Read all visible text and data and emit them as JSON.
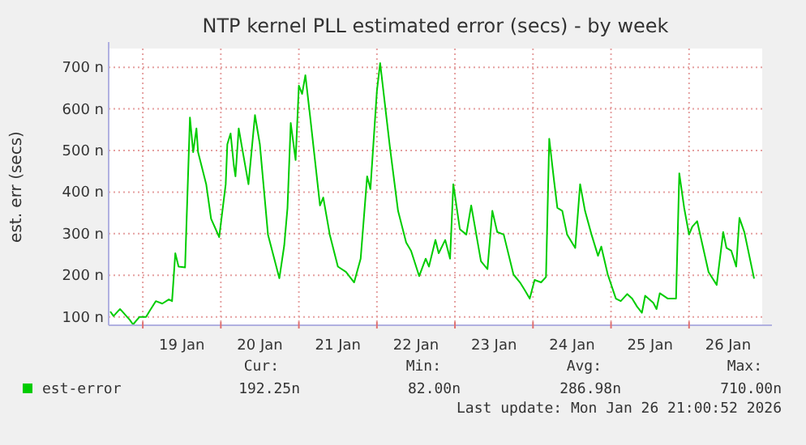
{
  "chart_data": {
    "type": "line",
    "title": "NTP kernel PLL estimated error (secs) - by week",
    "ylabel": "est. err (secs)",
    "x": [
      "2026-01-18T14:00",
      "2026-01-18T15:00",
      "2026-01-18T17:00",
      "2026-01-18T20:00",
      "2026-01-18T21:00",
      "2026-01-18T23:00",
      "2026-01-19T01:00",
      "2026-01-19T02:00",
      "2026-01-19T04:00",
      "2026-01-19T06:00",
      "2026-01-19T08:00",
      "2026-01-19T09:00",
      "2026-01-19T10:00",
      "2026-01-19T11:00",
      "2026-01-19T13:00",
      "2026-01-19T14:30",
      "2026-01-19T15:30",
      "2026-01-19T16:30",
      "2026-01-19T17:00",
      "2026-01-19T19:30",
      "2026-01-19T21:00",
      "2026-01-19T23:30",
      "2026-01-20T01:30",
      "2026-01-20T02:00",
      "2026-01-20T03:00",
      "2026-01-20T04:00",
      "2026-01-20T04:30",
      "2026-01-20T05:30",
      "2026-01-20T06:30",
      "2026-01-20T08:30",
      "2026-01-20T10:30",
      "2026-01-20T12:00",
      "2026-01-20T14:30",
      "2026-01-20T18:00",
      "2026-01-20T19:30",
      "2026-01-20T20:30",
      "2026-01-20T21:30",
      "2026-01-20T23:00",
      "2026-01-21T00:00",
      "2026-01-21T01:00",
      "2026-01-21T02:00",
      "2026-01-21T03:30",
      "2026-01-21T06:30",
      "2026-01-21T07:30",
      "2026-01-21T09:30",
      "2026-01-21T12:00",
      "2026-01-21T14:30",
      "2026-01-21T17:00",
      "2026-01-21T19:00",
      "2026-01-21T21:00",
      "2026-01-21T22:00",
      "2026-01-22T00:00",
      "2026-01-22T01:00",
      "2026-01-22T04:00",
      "2026-01-22T06:30",
      "2026-01-22T09:00",
      "2026-01-22T10:30",
      "2026-01-22T13:00",
      "2026-01-22T15:00",
      "2026-01-22T16:00",
      "2026-01-22T18:00",
      "2026-01-22T19:00",
      "2026-01-22T21:00",
      "2026-01-22T22:30",
      "2026-01-22T23:30",
      "2026-01-23T01:30",
      "2026-01-23T03:30",
      "2026-01-23T05:00",
      "2026-01-23T08:00",
      "2026-01-23T10:00",
      "2026-01-23T11:30",
      "2026-01-23T13:00",
      "2026-01-23T15:00",
      "2026-01-23T18:00",
      "2026-01-23T20:00",
      "2026-01-23T21:30",
      "2026-01-23T23:00",
      "2026-01-24T00:30",
      "2026-01-24T02:30",
      "2026-01-24T04:00",
      "2026-01-24T05:00",
      "2026-01-24T06:30",
      "2026-01-24T07:30",
      "2026-01-24T09:00",
      "2026-01-24T10:30",
      "2026-01-24T12:30",
      "2026-01-24T13:00",
      "2026-01-24T14:30",
      "2026-01-24T16:00",
      "2026-01-24T18:00",
      "2026-01-24T20:00",
      "2026-01-24T21:00",
      "2026-01-24T23:00",
      "2026-01-25T01:30",
      "2026-01-25T03:00",
      "2026-01-25T05:00",
      "2026-01-25T06:30",
      "2026-01-25T08:00",
      "2026-01-25T09:30",
      "2026-01-25T10:30",
      "2026-01-25T13:00",
      "2026-01-25T14:00",
      "2026-01-25T15:00",
      "2026-01-25T17:30",
      "2026-01-25T20:00",
      "2026-01-25T21:00",
      "2026-01-25T22:30",
      "2026-01-26T00:00",
      "2026-01-26T01:00",
      "2026-01-26T02:30",
      "2026-01-26T06:00",
      "2026-01-26T08:30",
      "2026-01-26T10:30",
      "2026-01-26T11:30",
      "2026-01-26T13:00",
      "2026-01-26T14:30",
      "2026-01-26T15:30",
      "2026-01-26T17:00",
      "2026-01-26T20:00"
    ],
    "series": [
      {
        "name": "est-error",
        "color": "#00cc00",
        "values": [
          113,
          102,
          119,
          93,
          82,
          100,
          100,
          113,
          138,
          132,
          142,
          138,
          253,
          221,
          219,
          579,
          496,
          553,
          496,
          419,
          336,
          292,
          419,
          515,
          541,
          464,
          438,
          553,
          508,
          419,
          585,
          515,
          298,
          193,
          272,
          362,
          566,
          477,
          656,
          636,
          681,
          579,
          368,
          387,
          298,
          221,
          208,
          183,
          240,
          438,
          407,
          643,
          710,
          508,
          355,
          279,
          259,
          198,
          240,
          221,
          285,
          253,
          285,
          240,
          419,
          311,
          298,
          368,
          234,
          215,
          355,
          304,
          298,
          202,
          183,
          164,
          144,
          189,
          183,
          196,
          528,
          426,
          362,
          355,
          298,
          272,
          266,
          419,
          355,
          298,
          247,
          269,
          202,
          144,
          138,
          155,
          144,
          125,
          110,
          151,
          134,
          119,
          157,
          144,
          144,
          445,
          362,
          298,
          317,
          330,
          208,
          177,
          304,
          266,
          259,
          221,
          338,
          304,
          192
        ]
      }
    ],
    "xlim": [
      "2026-01-18T13:30",
      "2026-01-26T22:30"
    ],
    "xticks": [
      {
        "value": "2026-01-19T00:00",
        "label": null
      },
      {
        "value": "2026-01-19T12:00",
        "label": "19 Jan"
      },
      {
        "value": "2026-01-20T00:00",
        "label": null
      },
      {
        "value": "2026-01-20T12:00",
        "label": "20 Jan"
      },
      {
        "value": "2026-01-21T00:00",
        "label": null
      },
      {
        "value": "2026-01-21T12:00",
        "label": "21 Jan"
      },
      {
        "value": "2026-01-22T00:00",
        "label": null
      },
      {
        "value": "2026-01-22T12:00",
        "label": "22 Jan"
      },
      {
        "value": "2026-01-23T00:00",
        "label": null
      },
      {
        "value": "2026-01-23T12:00",
        "label": "23 Jan"
      },
      {
        "value": "2026-01-24T00:00",
        "label": null
      },
      {
        "value": "2026-01-24T12:00",
        "label": "24 Jan"
      },
      {
        "value": "2026-01-25T00:00",
        "label": null
      },
      {
        "value": "2026-01-25T12:00",
        "label": "25 Jan"
      },
      {
        "value": "2026-01-26T00:00",
        "label": null
      },
      {
        "value": "2026-01-26T12:00",
        "label": "26 Jan"
      }
    ],
    "ylim": [
      80,
      745
    ],
    "yticks": [
      {
        "value": 100,
        "label": "100 n"
      },
      {
        "value": 200,
        "label": "200 n"
      },
      {
        "value": 300,
        "label": "300 n"
      },
      {
        "value": 400,
        "label": "400 n"
      },
      {
        "value": 500,
        "label": "500 n"
      },
      {
        "value": 600,
        "label": "600 n"
      },
      {
        "value": 700,
        "label": "700 n"
      }
    ],
    "grid": true,
    "legend": "bottom left",
    "annotations": [
      "Cur:",
      "Min:",
      "Avg:",
      "Max:",
      "192.25n",
      "82.00n",
      "286.98n",
      "710.00n",
      "Last update: Mon Jan 26 21:00:52 2026"
    ]
  }
}
